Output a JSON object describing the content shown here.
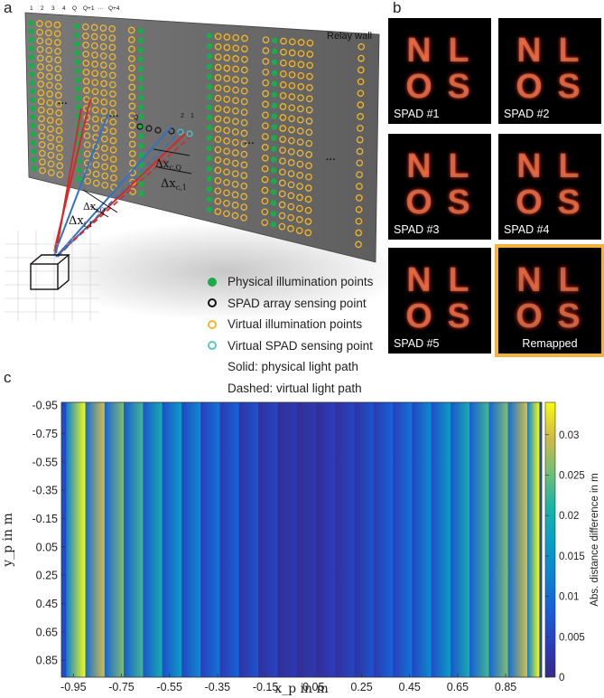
{
  "panel_a": {
    "letter": "a",
    "wall_label": "Relay wall",
    "column_labels": [
      "1",
      "2",
      "3",
      "4",
      "Q",
      "Q+1",
      "···",
      "Q+4"
    ],
    "point_labels": [
      "Q",
      "2",
      "1"
    ],
    "dots_label": "···",
    "legend": [
      {
        "text": "Physical illumination points",
        "style": "filled",
        "color": "#1aab4b"
      },
      {
        "text": "SPAD array sensing point",
        "style": "ring",
        "color": "#111111"
      },
      {
        "text": "Virtual illumination points",
        "style": "ring",
        "color": "#f2b62b"
      },
      {
        "text": "Virtual SPAD sensing point",
        "style": "ring",
        "color": "#5cc4c4"
      },
      {
        "text": "Solid: physical light path",
        "style": "none",
        "color": ""
      },
      {
        "text": "Dashed: virtual light path",
        "style": "none",
        "color": ""
      }
    ],
    "colors": {
      "wall": "#6d6d6d",
      "physical": "#1aab4b",
      "virtual": "#f2b62b",
      "red_path": "#d62828",
      "blue_path": "#2f73c9"
    }
  },
  "panel_b": {
    "letter": "b",
    "image_letters": [
      "N",
      "L",
      "O",
      "S"
    ],
    "thumbnails": [
      {
        "label": "SPAD #1",
        "highlight": false
      },
      {
        "label": "SPAD #2",
        "highlight": false
      },
      {
        "label": "SPAD #3",
        "highlight": false
      },
      {
        "label": "SPAD #4",
        "highlight": false
      },
      {
        "label": "SPAD #5",
        "highlight": false
      },
      {
        "label": "Remapped",
        "highlight": true
      }
    ],
    "highlight_color": "#f4b23c"
  },
  "panel_c": {
    "letter": "c"
  },
  "chart_data": {
    "type": "heatmap",
    "xlabel": "x_p in m",
    "ylabel": "y_p in m",
    "x_ticks": [
      "-0.95",
      "-0.75",
      "-0.55",
      "-0.35",
      "-0.15",
      "0.05",
      "0.25",
      "0.45",
      "0.65",
      "0.85"
    ],
    "y_ticks": [
      "-0.95",
      "-0.75",
      "-0.55",
      "-0.35",
      "-0.15",
      "0.05",
      "0.25",
      "0.45",
      "0.65",
      "0.85"
    ],
    "xlim": [
      -1.0,
      1.0
    ],
    "ylim": [
      -0.97,
      0.97
    ],
    "colorbar": {
      "label": "Abs. distance difference in m",
      "ticks": [
        "0",
        "0.005",
        "0.01",
        "0.015",
        "0.02",
        "0.025",
        "0.03"
      ],
      "range": [
        0,
        0.034
      ],
      "colormap": "parula"
    },
    "columns": [
      {
        "x_start": -0.98,
        "x_end": -0.9,
        "value_left": 0.012,
        "value_right": 0.034
      },
      {
        "x_start": -0.9,
        "x_end": -0.82,
        "value_left": 0.01,
        "value_right": 0.03
      },
      {
        "x_start": -0.82,
        "x_end": -0.74,
        "value_left": 0.009,
        "value_right": 0.026
      },
      {
        "x_start": -0.74,
        "x_end": -0.66,
        "value_left": 0.008,
        "value_right": 0.023
      },
      {
        "x_start": -0.66,
        "x_end": -0.58,
        "value_left": 0.007,
        "value_right": 0.02
      },
      {
        "x_start": -0.58,
        "x_end": -0.5,
        "value_left": 0.006,
        "value_right": 0.017
      },
      {
        "x_start": -0.5,
        "x_end": -0.42,
        "value_left": 0.005,
        "value_right": 0.014
      },
      {
        "x_start": -0.42,
        "x_end": -0.34,
        "value_left": 0.004,
        "value_right": 0.011
      },
      {
        "x_start": -0.34,
        "x_end": -0.26,
        "value_left": 0.003,
        "value_right": 0.009
      },
      {
        "x_start": -0.26,
        "x_end": -0.18,
        "value_left": 0.002,
        "value_right": 0.007
      },
      {
        "x_start": -0.18,
        "x_end": -0.1,
        "value_left": 0.0015,
        "value_right": 0.005
      },
      {
        "x_start": -0.1,
        "x_end": -0.02,
        "value_left": 0.001,
        "value_right": 0.0035
      },
      {
        "x_start": -0.02,
        "x_end": 0.06,
        "value_left": 0.001,
        "value_right": 0.003
      },
      {
        "x_start": 0.06,
        "x_end": 0.14,
        "value_left": 0.001,
        "value_right": 0.004
      },
      {
        "x_start": 0.14,
        "x_end": 0.22,
        "value_left": 0.0015,
        "value_right": 0.005
      },
      {
        "x_start": 0.22,
        "x_end": 0.3,
        "value_left": 0.002,
        "value_right": 0.007
      },
      {
        "x_start": 0.3,
        "x_end": 0.38,
        "value_left": 0.003,
        "value_right": 0.009
      },
      {
        "x_start": 0.38,
        "x_end": 0.46,
        "value_left": 0.004,
        "value_right": 0.011
      },
      {
        "x_start": 0.46,
        "x_end": 0.54,
        "value_left": 0.005,
        "value_right": 0.014
      },
      {
        "x_start": 0.54,
        "x_end": 0.62,
        "value_left": 0.006,
        "value_right": 0.017
      },
      {
        "x_start": 0.62,
        "x_end": 0.7,
        "value_left": 0.007,
        "value_right": 0.02
      },
      {
        "x_start": 0.7,
        "x_end": 0.78,
        "value_left": 0.008,
        "value_right": 0.023
      },
      {
        "x_start": 0.78,
        "x_end": 0.86,
        "value_left": 0.009,
        "value_right": 0.026
      },
      {
        "x_start": 0.86,
        "x_end": 0.94,
        "value_left": 0.01,
        "value_right": 0.03
      },
      {
        "x_start": 0.94,
        "x_end": 0.99,
        "value_left": 0.012,
        "value_right": 0.034
      }
    ]
  }
}
